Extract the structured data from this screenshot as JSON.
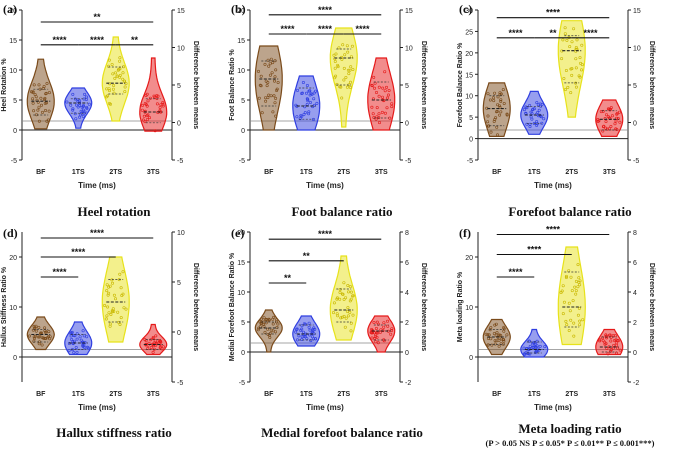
{
  "chart_data": [
    {
      "type": "violin",
      "panel": "(a)",
      "title": "Heel rotation",
      "ylabel": "Heel Rotation %",
      "y2label": "Difference between means",
      "xlabel": "Time (ms)",
      "categories": [
        "BF",
        "1TS",
        "2TS",
        "3TS"
      ],
      "ylim": [
        -5,
        20
      ],
      "yticks": [
        -5,
        0,
        5,
        10,
        15,
        20
      ],
      "y2lim": [
        -5,
        15
      ],
      "y2ticks": [
        -5,
        0,
        5,
        10,
        15
      ],
      "series": [
        {
          "name": "BF",
          "color": "#7a4a1a",
          "min": 0.2,
          "q1": 2.5,
          "median": 4.8,
          "q3": 6.8,
          "max": 11.8
        },
        {
          "name": "1TS",
          "color": "#2f3ee0",
          "min": 0.3,
          "q1": 2.8,
          "median": 4.5,
          "q3": 5.2,
          "max": 7.0
        },
        {
          "name": "2TS",
          "color": "#e7e21a",
          "min": 1.5,
          "q1": 6.0,
          "median": 7.8,
          "q3": 10.5,
          "max": 15.5
        },
        {
          "name": "3TS",
          "color": "#e51a1a",
          "min": -0.2,
          "q1": 1.2,
          "median": 3.0,
          "q3": 5.2,
          "max": 12.0
        }
      ],
      "reference_line": 1.5,
      "significance": [
        {
          "from": "BF",
          "to": "3TS",
          "label": "**",
          "level": 18.0
        },
        {
          "from": "BF",
          "to": "1TS",
          "label": "****",
          "level": 14.2
        },
        {
          "from": "1TS",
          "to": "2TS",
          "label": "****",
          "level": 14.2
        },
        {
          "from": "2TS",
          "to": "3TS",
          "label": "**",
          "level": 14.2
        }
      ]
    },
    {
      "type": "violin",
      "panel": "(b)",
      "title": "Foot balance ratio",
      "ylabel": "Foot Balance Ratio %",
      "y2label": "Difference between means",
      "xlabel": "Time (ms)",
      "categories": [
        "BF",
        "1TS",
        "2TS",
        "3TS"
      ],
      "ylim": [
        -5,
        20
      ],
      "yticks": [
        -5,
        0,
        5,
        10,
        15,
        20
      ],
      "y2lim": [
        -5,
        15
      ],
      "y2ticks": [
        -5,
        0,
        5,
        10,
        15
      ],
      "series": [
        {
          "name": "BF",
          "color": "#7a4a1a",
          "min": 0.0,
          "q1": 4.0,
          "median": 8.5,
          "q3": 11.5,
          "max": 14.0
        },
        {
          "name": "1TS",
          "color": "#2f3ee0",
          "min": 0.0,
          "q1": 1.8,
          "median": 4.0,
          "q3": 7.0,
          "max": 9.0
        },
        {
          "name": "2TS",
          "color": "#e7e21a",
          "min": 0.5,
          "q1": 7.5,
          "median": 12.0,
          "q3": 13.5,
          "max": 17.0
        },
        {
          "name": "3TS",
          "color": "#e51a1a",
          "min": 0.0,
          "q1": 2.0,
          "median": 5.0,
          "q3": 8.0,
          "max": 12.0
        }
      ],
      "reference_line": 1.5,
      "significance": [
        {
          "from": "BF",
          "to": "3TS",
          "label": "****",
          "level": 19.2
        },
        {
          "from": "BF",
          "to": "1TS",
          "label": "****",
          "level": 16.0
        },
        {
          "from": "1TS",
          "to": "2TS",
          "label": "****",
          "level": 16.0
        },
        {
          "from": "2TS",
          "to": "3TS",
          "label": "****",
          "level": 16.0
        }
      ]
    },
    {
      "type": "violin",
      "panel": "(c)",
      "title": "Forefoot balance ratio",
      "ylabel": "Forefoot Balance Ratio %",
      "y2label": "Difference between means",
      "xlabel": "Time (ms)",
      "categories": [
        "BF",
        "1TS",
        "2TS",
        "3TS"
      ],
      "ylim": [
        -5,
        30
      ],
      "yticks": [
        -5,
        0,
        5,
        10,
        15,
        20,
        25,
        30
      ],
      "y2lim": [
        -5,
        15
      ],
      "y2ticks": [
        -5,
        0,
        5,
        10,
        15
      ],
      "series": [
        {
          "name": "BF",
          "color": "#7a4a1a",
          "min": 0.5,
          "q1": 3.0,
          "median": 7.0,
          "q3": 10.0,
          "max": 13.0
        },
        {
          "name": "1TS",
          "color": "#2f3ee0",
          "min": 1.0,
          "q1": 3.5,
          "median": 5.5,
          "q3": 7.5,
          "max": 11.0
        },
        {
          "name": "2TS",
          "color": "#e7e21a",
          "min": 5.0,
          "q1": 13.0,
          "median": 20.5,
          "q3": 24.0,
          "max": 27.5
        },
        {
          "name": "3TS",
          "color": "#e51a1a",
          "min": 0.5,
          "q1": 2.0,
          "median": 4.5,
          "q3": 6.5,
          "max": 9.0
        }
      ],
      "reference_line": 2.0,
      "significance": [
        {
          "from": "BF",
          "to": "3TS",
          "label": "****",
          "level": 28.2
        },
        {
          "from": "BF",
          "to": "1TS",
          "label": "****",
          "level": 23.5
        },
        {
          "from": "1TS",
          "to": "2TS",
          "label": "**",
          "level": 23.5
        },
        {
          "from": "2TS",
          "to": "3TS",
          "label": "****",
          "level": 23.5
        }
      ]
    },
    {
      "type": "violin",
      "panel": "(d)",
      "title": "Hallux stiffness ratio",
      "ylabel": "Hallux Stiffness Ratio %",
      "y2label": "Difference between means",
      "xlabel": "Time (ms)",
      "categories": [
        "BF",
        "1TS",
        "2TS",
        "3TS"
      ],
      "ylim": [
        -5,
        25
      ],
      "yticks": [
        0,
        10,
        20
      ],
      "y2lim": [
        -5,
        10
      ],
      "y2ticks": [
        -5,
        0,
        5,
        10
      ],
      "series": [
        {
          "name": "BF",
          "color": "#7a4a1a",
          "min": 1.5,
          "q1": 3.0,
          "median": 4.5,
          "q3": 5.5,
          "max": 8.0
        },
        {
          "name": "1TS",
          "color": "#2f3ee0",
          "min": 0.5,
          "q1": 1.5,
          "median": 2.8,
          "q3": 4.5,
          "max": 7.0
        },
        {
          "name": "2TS",
          "color": "#e7e21a",
          "min": 3.0,
          "q1": 7.0,
          "median": 11.0,
          "q3": 15.5,
          "max": 20.0
        },
        {
          "name": "3TS",
          "color": "#e51a1a",
          "min": 0.5,
          "q1": 1.5,
          "median": 2.5,
          "q3": 3.5,
          "max": 6.5
        }
      ],
      "reference_line": 1.5,
      "significance": [
        {
          "from": "BF",
          "to": "3TS",
          "label": "****",
          "level": 23.8
        },
        {
          "from": "BF",
          "to": "2TS",
          "label": "****",
          "level": 20.0
        },
        {
          "from": "BF",
          "to": "1TS",
          "label": "****",
          "level": 16.0
        }
      ]
    },
    {
      "type": "violin",
      "panel": "(e)",
      "title": "Medial forefoot balance ratio",
      "ylabel": "Medial Forefoot Balance Ratio %",
      "y2label": "Difference between means",
      "xlabel": "Time (ms)",
      "categories": [
        "BF",
        "1TS",
        "2TS",
        "3TS"
      ],
      "ylim": [
        -5,
        20
      ],
      "yticks": [
        -5,
        0,
        5,
        10,
        15,
        20
      ],
      "y2lim": [
        -2,
        8
      ],
      "y2ticks": [
        -2,
        0,
        2,
        4,
        6,
        8
      ],
      "series": [
        {
          "name": "BF",
          "color": "#7a4a1a",
          "min": 0.0,
          "q1": 3.0,
          "median": 4.0,
          "q3": 5.0,
          "max": 7.0
        },
        {
          "name": "1TS",
          "color": "#2f3ee0",
          "min": 1.0,
          "q1": 2.0,
          "median": 3.0,
          "q3": 4.5,
          "max": 6.0
        },
        {
          "name": "2TS",
          "color": "#e7e21a",
          "min": 2.0,
          "q1": 5.0,
          "median": 7.0,
          "q3": 10.5,
          "max": 16.0
        },
        {
          "name": "3TS",
          "color": "#e51a1a",
          "min": 0.0,
          "q1": 2.0,
          "median": 3.5,
          "q3": 4.5,
          "max": 6.0
        }
      ],
      "reference_line": 1.5,
      "significance": [
        {
          "from": "BF",
          "to": "3TS",
          "label": "****",
          "level": 18.8
        },
        {
          "from": "BF",
          "to": "2TS",
          "label": "**",
          "level": 15.2
        },
        {
          "from": "BF",
          "to": "1TS",
          "label": "**",
          "level": 11.5
        }
      ]
    },
    {
      "type": "violin",
      "panel": "(f)",
      "title": "Meta loading ratio",
      "ylabel": "Meta loading Ratio %",
      "y2label": "Difference between means",
      "xlabel": "Time (ms)",
      "categories": [
        "BF",
        "1TS",
        "2TS",
        "3TS"
      ],
      "ylim": [
        -5,
        25
      ],
      "yticks": [
        0,
        10,
        20
      ],
      "y2lim": [
        -2,
        8
      ],
      "y2ticks": [
        -2,
        0,
        2,
        4,
        6,
        8
      ],
      "series": [
        {
          "name": "BF",
          "color": "#7a4a1a",
          "min": 0.5,
          "q1": 2.5,
          "median": 4.0,
          "q3": 5.5,
          "max": 7.5
        },
        {
          "name": "1TS",
          "color": "#2f3ee0",
          "min": 0.0,
          "q1": 0.8,
          "median": 1.5,
          "q3": 3.0,
          "max": 5.5
        },
        {
          "name": "2TS",
          "color": "#e7e21a",
          "min": 2.5,
          "q1": 6.0,
          "median": 10.0,
          "q3": 17.0,
          "max": 22.0
        },
        {
          "name": "3TS",
          "color": "#e51a1a",
          "min": 0.5,
          "q1": 1.0,
          "median": 2.0,
          "q3": 4.0,
          "max": 5.5
        }
      ],
      "reference_line": 1.5,
      "significance": [
        {
          "from": "BF",
          "to": "3TS",
          "label": "****",
          "level": 24.5
        },
        {
          "from": "BF",
          "to": "2TS",
          "label": "****",
          "level": 20.5
        },
        {
          "from": "BF",
          "to": "1TS",
          "label": "****",
          "level": 16.0
        }
      ]
    }
  ],
  "footnote": "(P > 0.05 NS P ≤ 0.05* P ≤ 0.01** P ≤ 0.001***)"
}
